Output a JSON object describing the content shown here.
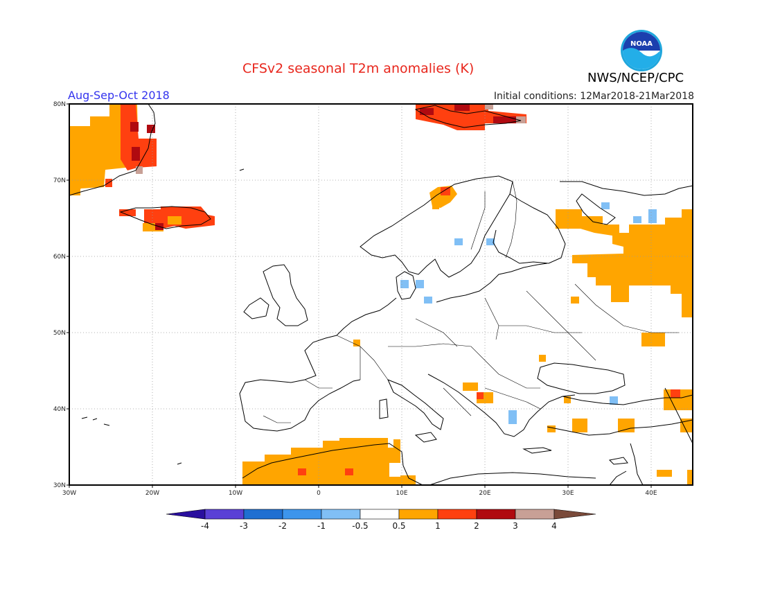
{
  "header": {
    "title": "CFSv2 seasonal T2m anomalies (K)",
    "period": "Aug-Sep-Oct 2018",
    "initial_conditions": "Initial conditions: 12Mar2018-21Mar2018",
    "agency": "NWS/NCEP/CPC",
    "logo_text": "NOAA"
  },
  "map": {
    "region": "Europe",
    "lat_labels": [
      "80N",
      "70N",
      "60N",
      "50N",
      "40N",
      "30N"
    ],
    "lon_labels": [
      "30W",
      "20W",
      "10W",
      "0",
      "10E",
      "20E",
      "30E",
      "40E"
    ],
    "lon_range": [
      -30,
      45
    ],
    "lat_range": [
      30,
      80
    ],
    "gridlines": "dotted"
  },
  "colorbar": {
    "labels": [
      "-4",
      "-3",
      "-2",
      "-1",
      "-0.5",
      "0.5",
      "1",
      "2",
      "3",
      "4"
    ],
    "colors": [
      "#2a0f9e",
      "#5a40d6",
      "#1f6fd1",
      "#3d95ec",
      "#80bff5",
      "#ffffff",
      "#ffa500",
      "#ff4010",
      "#b00a10",
      "#c8a096",
      "#7a4a3a"
    ]
  },
  "anomaly_regions": [
    {
      "area": "Greenland west",
      "category": "0.5 to 1",
      "color": "#ffa500"
    },
    {
      "area": "Greenland east coast",
      "category": "1 to 2",
      "color": "#ff4010"
    },
    {
      "area": "Iceland",
      "category": "1 to 2",
      "color": "#ff4010"
    },
    {
      "area": "Svalbard",
      "category": "1 to 3",
      "color": "#ff4010"
    },
    {
      "area": "Northwest Russia",
      "category": "0.5 to 1",
      "color": "#ffa500"
    },
    {
      "area": "North Africa",
      "category": "0.5 to 1",
      "color": "#ffa500"
    },
    {
      "area": "Scandinavia spots",
      "category": "-1 to -0.5",
      "color": "#80bff5"
    }
  ]
}
